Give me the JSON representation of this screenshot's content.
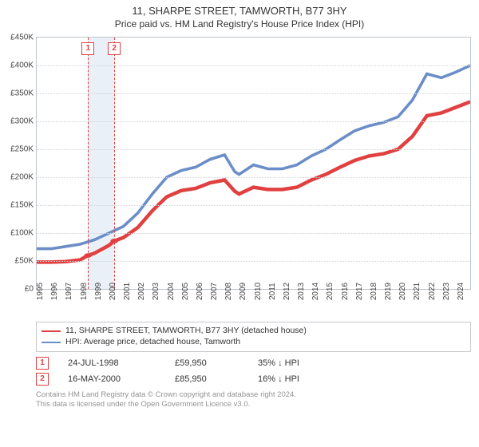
{
  "title": "11, SHARPE STREET, TAMWORTH, B77 3HY",
  "subtitle": "Price paid vs. HM Land Registry's House Price Index (HPI)",
  "chart": {
    "type": "line",
    "x_start_year": 1995,
    "x_end_year": 2025,
    "x_tick_years": [
      1995,
      1996,
      1997,
      1998,
      1999,
      2000,
      2001,
      2002,
      2003,
      2004,
      2005,
      2006,
      2007,
      2008,
      2009,
      2010,
      2011,
      2012,
      2013,
      2014,
      2015,
      2016,
      2017,
      2018,
      2019,
      2020,
      2021,
      2022,
      2023,
      2024
    ],
    "ylim": [
      0,
      450000
    ],
    "ytick_step": 50000,
    "ytick_labels": [
      "£0",
      "£50K",
      "£100K",
      "£150K",
      "£200K",
      "£250K",
      "£300K",
      "£350K",
      "£400K",
      "£450K"
    ],
    "grid_color": "#d0d4da",
    "border_color": "#bfc5cc",
    "background_color": "#ffffff",
    "shade_band": {
      "from_year": 1998.55,
      "to_year": 2000.37,
      "color": "#eaf0f7"
    },
    "series": [
      {
        "id": "property",
        "label": "11, SHARPE STREET, TAMWORTH, B77 3HY (detached house)",
        "color": "#e04040",
        "width": 1.5,
        "points": [
          [
            1995,
            48000
          ],
          [
            1996,
            48000
          ],
          [
            1997,
            49000
          ],
          [
            1998,
            52000
          ],
          [
            1998.55,
            59950
          ],
          [
            1999,
            64000
          ],
          [
            2000,
            78000
          ],
          [
            2000.37,
            85950
          ],
          [
            2001,
            92000
          ],
          [
            2002,
            110000
          ],
          [
            2003,
            140000
          ],
          [
            2004,
            165000
          ],
          [
            2005,
            176000
          ],
          [
            2006,
            180000
          ],
          [
            2007,
            190000
          ],
          [
            2008,
            195000
          ],
          [
            2008.7,
            175000
          ],
          [
            2009,
            170000
          ],
          [
            2010,
            182000
          ],
          [
            2011,
            178000
          ],
          [
            2012,
            178000
          ],
          [
            2013,
            182000
          ],
          [
            2014,
            195000
          ],
          [
            2015,
            205000
          ],
          [
            2016,
            218000
          ],
          [
            2017,
            230000
          ],
          [
            2018,
            238000
          ],
          [
            2019,
            242000
          ],
          [
            2020,
            250000
          ],
          [
            2021,
            273000
          ],
          [
            2022,
            310000
          ],
          [
            2023,
            315000
          ],
          [
            2024,
            325000
          ],
          [
            2025,
            335000
          ]
        ],
        "sale_markers": [
          {
            "year": 1998.55,
            "value": 59950
          },
          {
            "year": 2000.37,
            "value": 85950
          }
        ]
      },
      {
        "id": "hpi",
        "label": "HPI: Average price, detached house, Tamworth",
        "color": "#6b8ec8",
        "width": 1.2,
        "points": [
          [
            1995,
            72000
          ],
          [
            1996,
            72000
          ],
          [
            1997,
            76000
          ],
          [
            1998,
            80000
          ],
          [
            1999,
            88000
          ],
          [
            2000,
            100000
          ],
          [
            2001,
            112000
          ],
          [
            2002,
            136000
          ],
          [
            2003,
            170000
          ],
          [
            2004,
            200000
          ],
          [
            2005,
            212000
          ],
          [
            2006,
            218000
          ],
          [
            2007,
            232000
          ],
          [
            2008,
            240000
          ],
          [
            2008.7,
            210000
          ],
          [
            2009,
            205000
          ],
          [
            2010,
            222000
          ],
          [
            2011,
            215000
          ],
          [
            2012,
            215000
          ],
          [
            2013,
            222000
          ],
          [
            2014,
            238000
          ],
          [
            2015,
            250000
          ],
          [
            2016,
            267000
          ],
          [
            2017,
            283000
          ],
          [
            2018,
            292000
          ],
          [
            2019,
            298000
          ],
          [
            2020,
            308000
          ],
          [
            2021,
            338000
          ],
          [
            2022,
            385000
          ],
          [
            2023,
            378000
          ],
          [
            2024,
            388000
          ],
          [
            2025,
            400000
          ]
        ]
      }
    ],
    "marker_boxes": [
      {
        "n": "1",
        "year": 1998.55,
        "color": "#e04040"
      },
      {
        "n": "2",
        "year": 2000.37,
        "color": "#e04040"
      }
    ]
  },
  "legend": {
    "rows": [
      {
        "color": "#e04040",
        "text": "11, SHARPE STREET, TAMWORTH, B77 3HY (detached house)"
      },
      {
        "color": "#6b8ec8",
        "text": "HPI: Average price, detached house, Tamworth"
      }
    ]
  },
  "transactions": [
    {
      "n": "1",
      "color": "#e04040",
      "date": "24-JUL-1998",
      "price": "£59,950",
      "pct": "35% ↓ HPI"
    },
    {
      "n": "2",
      "color": "#e04040",
      "date": "16-MAY-2000",
      "price": "£85,950",
      "pct": "16% ↓ HPI"
    }
  ],
  "footer": {
    "line1": "Contains HM Land Registry data © Crown copyright and database right 2024.",
    "line2": "This data is licensed under the Open Government Licence v3.0."
  }
}
